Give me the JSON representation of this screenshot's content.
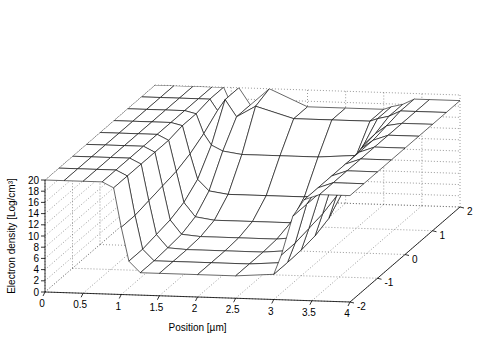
{
  "chart_data": {
    "type": "surface",
    "x_label": "Position [µm]",
    "z_label": "Electron density [Log/cm³]",
    "x": [
      0,
      0.25,
      0.5,
      0.75,
      0.9,
      1.0,
      1.1,
      1.25,
      1.5,
      2,
      2.5,
      3,
      3.1,
      3.25,
      3.4,
      3.6,
      4
    ],
    "y": [
      -2,
      -1.5,
      -1,
      -0.5,
      0,
      0.5,
      1,
      1.5,
      2
    ],
    "z": [
      [
        20,
        20,
        20,
        20,
        19,
        12,
        6,
        4,
        4,
        4,
        4,
        4.5,
        8,
        15,
        18,
        19,
        19
      ],
      [
        20,
        20,
        20,
        20,
        19,
        12,
        6,
        4,
        4,
        4,
        4,
        4.5,
        8,
        15,
        18,
        19,
        19
      ],
      [
        20,
        20,
        20,
        20,
        19,
        12.5,
        6.5,
        4.2,
        4,
        4,
        4,
        4.6,
        8.5,
        15,
        18,
        19,
        19
      ],
      [
        20,
        20,
        20,
        20,
        19,
        13,
        7,
        4.5,
        4.2,
        4.2,
        4.2,
        5,
        9,
        15.5,
        18,
        19,
        19
      ],
      [
        20,
        20,
        20,
        20,
        19,
        13.5,
        8,
        5.5,
        5,
        5,
        5,
        6,
        10,
        16,
        18,
        19,
        19
      ],
      [
        20,
        20,
        20,
        20,
        19.5,
        14.5,
        10,
        8,
        7.5,
        7.5,
        7.5,
        8.5,
        12,
        16.5,
        18,
        19,
        19
      ],
      [
        20,
        20,
        20,
        20,
        19.5,
        16,
        14,
        13,
        12.5,
        12.5,
        12.5,
        13,
        15,
        17,
        18.5,
        19,
        19
      ],
      [
        20,
        20,
        20,
        20,
        20,
        18,
        20,
        17,
        19,
        17,
        17,
        17,
        17.5,
        18,
        19,
        19,
        19
      ],
      [
        20,
        20,
        20,
        20,
        20,
        17,
        20,
        17,
        20,
        17,
        17,
        17,
        17.5,
        18,
        19,
        19,
        19
      ]
    ],
    "xlim": [
      0,
      4
    ],
    "xticks": [
      0,
      0.5,
      1,
      1.5,
      2,
      2.5,
      3,
      3.5,
      4
    ],
    "ylim": [
      -2,
      2
    ],
    "yticks": [
      -2,
      -1,
      0,
      1,
      2
    ],
    "zlim": [
      0,
      20
    ],
    "zticks": [
      0,
      2,
      4,
      6,
      8,
      10,
      12,
      14,
      16,
      18,
      20
    ],
    "grid": true,
    "color": "#000000"
  }
}
